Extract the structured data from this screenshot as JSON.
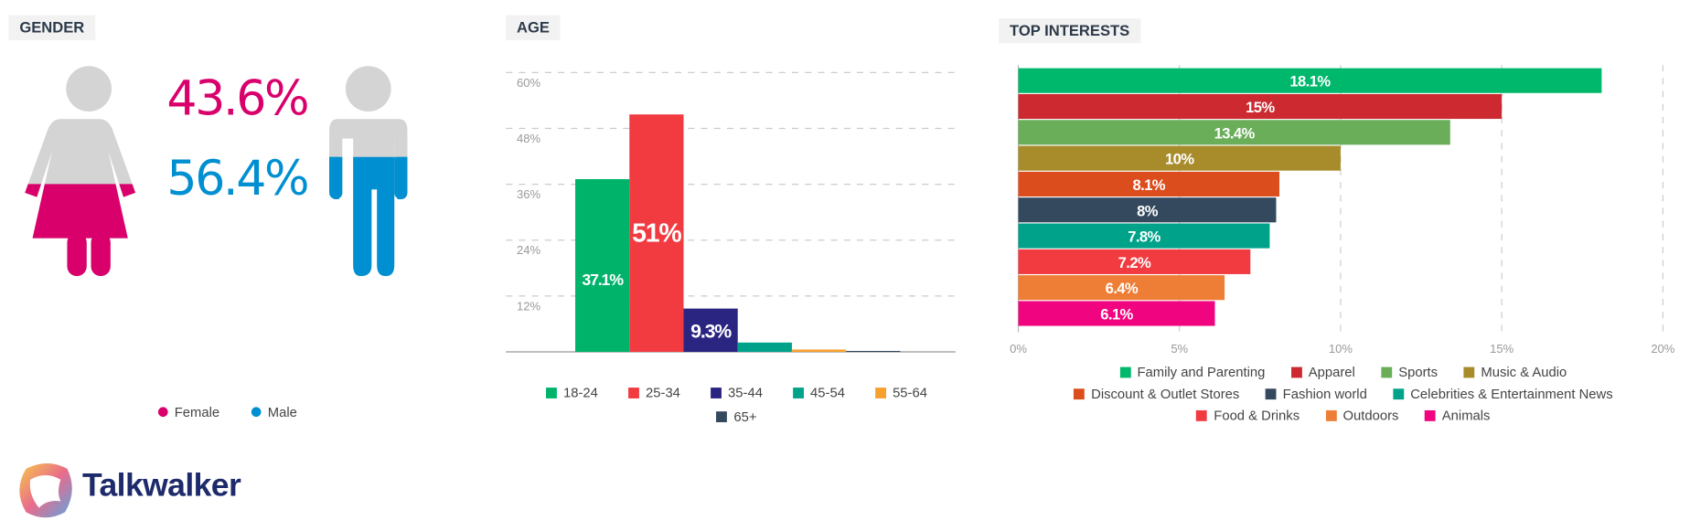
{
  "gender": {
    "title": "GENDER",
    "female": {
      "label": "Female",
      "value_label": "43.6%",
      "value": 43.6,
      "color": "#d9006c"
    },
    "male": {
      "label": "Male",
      "value_label": "56.4%",
      "value": 56.4,
      "color": "#008fd1"
    },
    "figure_base_color": "#d4d4d4"
  },
  "brand": {
    "name": "Talkwalker",
    "color": "#1d2a6b"
  },
  "chart_data": [
    {
      "type": "bar",
      "title": "AGE",
      "categories": [
        "18-24",
        "25-34",
        "35-44",
        "45-54",
        "55-64",
        "65+"
      ],
      "values": [
        37.1,
        51,
        9.3,
        2,
        0.5,
        0.2
      ],
      "data_labels": [
        "37.1%",
        "51%",
        "9.3%",
        "",
        "",
        ""
      ],
      "colors": [
        "#00b36b",
        "#f23a41",
        "#2b2582",
        "#00a38a",
        "#f7a030",
        "#34495e"
      ],
      "yticks": [
        "12%",
        "24%",
        "36%",
        "48%",
        "60%"
      ],
      "ytick_values": [
        12,
        24,
        36,
        48,
        60
      ],
      "ylim": [
        0,
        60
      ],
      "grid": true,
      "legend": "bottom"
    },
    {
      "type": "bar",
      "orientation": "horizontal",
      "title": "TOP INTERESTS",
      "categories": [
        "Family and Parenting",
        "Apparel",
        "Sports",
        "Music & Audio",
        "Discount & Outlet Stores",
        "Fashion world",
        "Celebrities & Entertainment News",
        "Food & Drinks",
        "Outdoors",
        "Animals"
      ],
      "values": [
        18.1,
        15,
        13.4,
        10,
        8.1,
        8,
        7.8,
        7.2,
        6.4,
        6.1
      ],
      "data_labels": [
        "18.1%",
        "15%",
        "13.4%",
        "10%",
        "8.1%",
        "8%",
        "7.8%",
        "7.2%",
        "6.4%",
        "6.1%"
      ],
      "colors": [
        "#00b86b",
        "#cc2a30",
        "#6aae5a",
        "#a88c2c",
        "#dc4d1e",
        "#34495e",
        "#00a38a",
        "#f23a41",
        "#ee7d36",
        "#f0047f"
      ],
      "xticks": [
        "0%",
        "5%",
        "10%",
        "15%",
        "20%"
      ],
      "xtick_values": [
        0,
        5,
        10,
        15,
        20
      ],
      "xlim": [
        0,
        20
      ],
      "grid": true,
      "legend": "bottom"
    }
  ]
}
